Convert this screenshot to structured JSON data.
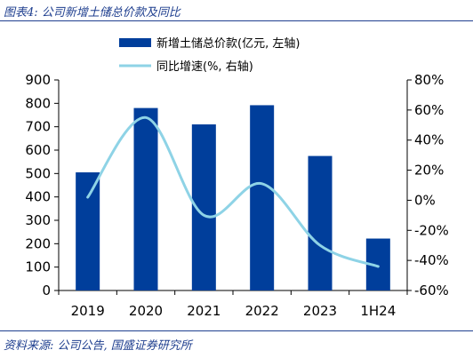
{
  "header": {
    "title": "图表4:  公司新增土储总价款及同比"
  },
  "footer": {
    "source": "资料来源:  公司公告,  国盛证券研究所"
  },
  "colors": {
    "bar": "#003e9b",
    "line": "#8ed3e6",
    "frame": "#1f3f8f"
  },
  "chart_data": {
    "type": "bar",
    "categories": [
      "2019",
      "2020",
      "2021",
      "2022",
      "2023",
      "1H24"
    ],
    "series": [
      {
        "name": "新增土储总价款(亿元, 左轴)",
        "type": "bar",
        "axis": "left",
        "values": [
          505,
          780,
          710,
          792,
          575,
          222
        ]
      },
      {
        "name": "同比增速(%, 右轴)",
        "type": "line",
        "axis": "right",
        "smooth": true,
        "values": [
          2,
          55,
          -10,
          11,
          -30,
          -44
        ]
      }
    ],
    "y_left": {
      "min": 0,
      "max": 900,
      "ticks": [
        0,
        100,
        200,
        300,
        400,
        500,
        600,
        700,
        800,
        900
      ]
    },
    "y_right": {
      "min": -60,
      "max": 80,
      "ticks": [
        -60,
        -40,
        -20,
        0,
        20,
        40,
        60,
        80
      ],
      "suffix": "%"
    },
    "legend_position": "top-center",
    "grid": false
  }
}
